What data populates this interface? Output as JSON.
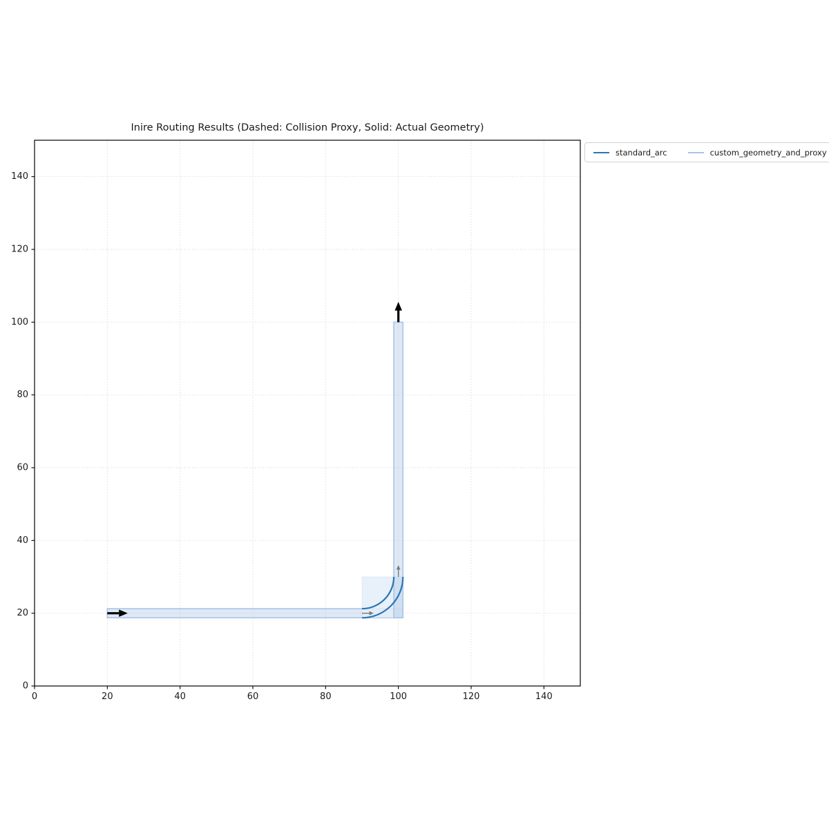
{
  "figure": {
    "title": "Inire Routing Results (Dashed: Collision Proxy, Solid: Actual Geometry)"
  },
  "legend": {
    "entries": [
      {
        "label": "standard_arc",
        "color": "#2b76b4"
      },
      {
        "label": "custom_geometry_and_proxy",
        "color": "#a8c4e6"
      }
    ]
  },
  "chart_data": {
    "type": "line",
    "title": "Inire Routing Results (Dashed: Collision Proxy, Solid: Actual Geometry)",
    "xlabel": "",
    "ylabel": "",
    "xlim": [
      0,
      150
    ],
    "ylim": [
      0,
      150
    ],
    "x_ticks": [
      0,
      20,
      40,
      60,
      80,
      100,
      120,
      140
    ],
    "y_ticks": [
      0,
      20,
      40,
      60,
      80,
      100,
      120,
      140
    ],
    "grid": {
      "on": true,
      "style": "dotted",
      "color": "#d2d2d2"
    },
    "legend_position": "outside-upper-right",
    "series": [
      {
        "name": "standard_arc",
        "color": "#2b76b4",
        "line_style": "solid",
        "waypoints": [
          [
            20,
            20
          ],
          [
            100,
            20
          ],
          [
            100,
            100
          ]
        ],
        "corner_type": "arc",
        "fillet_radius": 10,
        "band_halfwidth": 1.25,
        "arc_center": [
          90,
          30
        ]
      },
      {
        "name": "custom_geometry_and_proxy",
        "color": "#a8c4e6",
        "fill_color_rgba": "rgba(168,196,230,0.38)",
        "proxy_fill_rgba": "rgba(228,237,248,0.85)",
        "line_style": "solid",
        "waypoints": [
          [
            20,
            20
          ],
          [
            100,
            20
          ],
          [
            100,
            100
          ]
        ],
        "corner_type": "square",
        "band_halfwidth": 1.25,
        "proxy_region": {
          "x0": 90,
          "y0": 18.75,
          "x1": 101.25,
          "y1": 30
        }
      }
    ],
    "annotations": {
      "start_arrow": {
        "at": [
          20,
          20
        ],
        "dir": [
          1,
          0
        ],
        "color": "#000000"
      },
      "end_arrow": {
        "at": [
          100,
          100
        ],
        "dir": [
          0,
          1
        ],
        "color": "#000000"
      },
      "segment_arrows": [
        {
          "at": [
            90,
            20
          ],
          "dir": [
            1,
            0
          ],
          "color": "#7a7a7a"
        },
        {
          "at": [
            100,
            30
          ],
          "dir": [
            0,
            1
          ],
          "color": "#7a7a7a"
        }
      ]
    }
  }
}
